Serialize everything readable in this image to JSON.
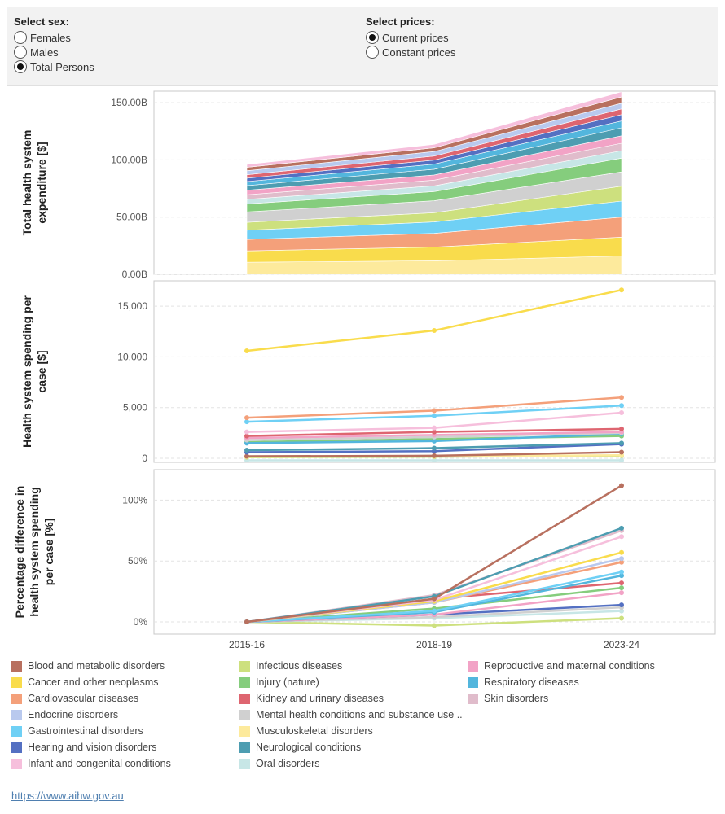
{
  "controls": {
    "sex": {
      "title": "Select sex:",
      "options": [
        "Females",
        "Males",
        "Total Persons"
      ],
      "selected": 2
    },
    "prices": {
      "title": "Select prices:",
      "options": [
        "Current prices",
        "Constant prices"
      ],
      "selected": 0
    }
  },
  "chart_data": [
    {
      "type": "area",
      "stacked": true,
      "ylabel": "Total health system expenditure [$]",
      "categories": [
        "2015-16",
        "2018-19",
        "2023-24"
      ],
      "ylim": [
        0,
        160000000000
      ],
      "yticks": [
        0,
        50000000000,
        100000000000,
        150000000000
      ],
      "ytick_labels": [
        "0.00B",
        "50.00B",
        "100.00B",
        "150.00B"
      ],
      "grid": true,
      "series": [
        {
          "name": "Musculoskeletal disorders",
          "values": [
            10.5,
            11.8,
            16.0
          ]
        },
        {
          "name": "Cancer and other neoplasms",
          "values": [
            10.0,
            12.0,
            16.5
          ]
        },
        {
          "name": "Cardiovascular diseases",
          "values": [
            10.0,
            12.0,
            17.5
          ]
        },
        {
          "name": "Gastrointestinal disorders",
          "values": [
            8.0,
            10.0,
            14.0
          ]
        },
        {
          "name": "Infectious diseases",
          "values": [
            7.0,
            8.0,
            13.0
          ]
        },
        {
          "name": "Mental health conditions and substance use disorders",
          "values": [
            9.0,
            10.5,
            12.5
          ]
        },
        {
          "name": "Injury (nature)",
          "values": [
            7.0,
            8.0,
            12.0
          ]
        },
        {
          "name": "Oral disorders",
          "values": [
            4.0,
            5.0,
            6.5
          ]
        },
        {
          "name": "Skin disorders",
          "values": [
            4.0,
            5.0,
            6.5
          ]
        },
        {
          "name": "Reproductive and maternal conditions",
          "values": [
            4.0,
            4.5,
            6.5
          ]
        },
        {
          "name": "Neurological conditions",
          "values": [
            4.0,
            5.0,
            7.0
          ]
        },
        {
          "name": "Respiratory diseases",
          "values": [
            3.5,
            4.5,
            6.0
          ]
        },
        {
          "name": "Hearing and vision disorders",
          "values": [
            3.0,
            3.5,
            5.5
          ]
        },
        {
          "name": "Kidney and urinary diseases",
          "values": [
            3.0,
            3.5,
            5.0
          ]
        },
        {
          "name": "Endocrine disorders",
          "values": [
            3.5,
            4.0,
            5.0
          ]
        },
        {
          "name": "Blood and metabolic disorders",
          "values": [
            3.0,
            3.2,
            5.5
          ]
        },
        {
          "name": "Infant and congenital conditions",
          "values": [
            2.5,
            3.0,
            4.5
          ]
        }
      ]
    },
    {
      "type": "line",
      "ylabel": "Health system spending per case [$]",
      "categories": [
        "2015-16",
        "2018-19",
        "2023-24"
      ],
      "ylim": [
        -400,
        17500
      ],
      "yticks": [
        0,
        5000,
        10000,
        15000
      ],
      "ytick_labels": [
        "0",
        "5,000",
        "10,000",
        "15,000"
      ],
      "grid": true,
      "series": [
        {
          "name": "Cancer and other neoplasms",
          "values": [
            10600,
            12600,
            16600
          ]
        },
        {
          "name": "Cardiovascular diseases",
          "values": [
            4000,
            4700,
            6000
          ]
        },
        {
          "name": "Gastrointestinal disorders",
          "values": [
            3600,
            4200,
            5200
          ]
        },
        {
          "name": "Infant and congenital conditions",
          "values": [
            2600,
            3000,
            4500
          ]
        },
        {
          "name": "Kidney and urinary diseases",
          "values": [
            2200,
            2600,
            2900
          ]
        },
        {
          "name": "Reproductive and maternal conditions",
          "values": [
            2000,
            2300,
            2600
          ]
        },
        {
          "name": "Mental health conditions and substance use disorders",
          "values": [
            1800,
            2100,
            2500
          ]
        },
        {
          "name": "Respiratory diseases",
          "values": [
            1500,
            1700,
            2400
          ]
        },
        {
          "name": "Injury (nature)",
          "values": [
            1600,
            1900,
            2200
          ]
        },
        {
          "name": "Neurological conditions",
          "values": [
            800,
            1000,
            1500
          ]
        },
        {
          "name": "Hearing and vision disorders",
          "values": [
            600,
            700,
            1400
          ]
        },
        {
          "name": "Blood and metabolic disorders",
          "values": [
            200,
            250,
            600
          ]
        },
        {
          "name": "Musculoskeletal disorders",
          "values": [
            150,
            200,
            300
          ]
        },
        {
          "name": "Infectious diseases",
          "values": [
            100,
            150,
            250
          ]
        },
        {
          "name": "Oral disorders",
          "values": [
            -200,
            -200,
            -200
          ]
        }
      ]
    },
    {
      "type": "line",
      "ylabel": "Percentage difference in health system spending per case [%]",
      "categories": [
        "2015-16",
        "2018-19",
        "2023-24"
      ],
      "ylim": [
        -10,
        125
      ],
      "yticks": [
        0,
        50,
        100
      ],
      "ytick_labels": [
        "0%",
        "50%",
        "100%"
      ],
      "grid": true,
      "series": [
        {
          "name": "Blood and metabolic disorders",
          "values": [
            0,
            19,
            112
          ]
        },
        {
          "name": "Neurological conditions",
          "values": [
            0,
            21,
            77
          ]
        },
        {
          "name": "Skin disorders",
          "values": [
            0,
            22,
            75
          ]
        },
        {
          "name": "Infant and congenital conditions",
          "values": [
            0,
            18,
            70
          ]
        },
        {
          "name": "Cancer and other neoplasms",
          "values": [
            0,
            17,
            57
          ]
        },
        {
          "name": "Endocrine disorders",
          "values": [
            0,
            16,
            52
          ]
        },
        {
          "name": "Cardiovascular diseases",
          "values": [
            0,
            16,
            49
          ]
        },
        {
          "name": "Gastrointestinal disorders",
          "values": [
            0,
            9,
            41
          ]
        },
        {
          "name": "Respiratory diseases",
          "values": [
            0,
            8,
            38
          ]
        },
        {
          "name": "Kidney and urinary diseases",
          "values": [
            0,
            19,
            32
          ]
        },
        {
          "name": "Injury (nature)",
          "values": [
            0,
            11,
            28
          ]
        },
        {
          "name": "Reproductive and maternal conditions",
          "values": [
            0,
            6,
            24
          ]
        },
        {
          "name": "Hearing and vision disorders",
          "values": [
            0,
            6,
            14
          ]
        },
        {
          "name": "Mental health conditions and substance use disorders",
          "values": [
            0,
            4,
            12
          ]
        },
        {
          "name": "Oral disorders",
          "values": [
            0,
            3,
            9
          ]
        },
        {
          "name": "Infectious diseases",
          "values": [
            0,
            -3,
            3
          ]
        }
      ]
    }
  ],
  "x_tick_labels": [
    "2015-16",
    "2018-19",
    "2023-24"
  ],
  "legend": [
    {
      "name": "Blood and metabolic disorders",
      "color": "#b8705f"
    },
    {
      "name": "Cancer and other neoplasms",
      "color": "#f9dc4c"
    },
    {
      "name": "Cardiovascular diseases",
      "color": "#f4a07a"
    },
    {
      "name": "Endocrine disorders",
      "color": "#b9c9ee"
    },
    {
      "name": "Gastrointestinal disorders",
      "color": "#6fd0f5"
    },
    {
      "name": "Hearing and vision disorders",
      "color": "#5470c2"
    },
    {
      "name": "Infant and congenital conditions",
      "color": "#f6bfdc"
    },
    {
      "name": "Infectious diseases",
      "color": "#cde07e"
    },
    {
      "name": "Injury (nature)",
      "color": "#85cd7d"
    },
    {
      "name": "Kidney and urinary diseases",
      "color": "#de6570"
    },
    {
      "name": "Mental health conditions and substance use ..",
      "color": "#d0d0d0"
    },
    {
      "name": "Musculoskeletal disorders",
      "color": "#fdea9c"
    },
    {
      "name": "Neurological conditions",
      "color": "#4d9db1"
    },
    {
      "name": "Oral disorders",
      "color": "#c7e6e6"
    },
    {
      "name": "Reproductive and maternal conditions",
      "color": "#f2a3c6"
    },
    {
      "name": "Respiratory diseases",
      "color": "#53b6dd"
    },
    {
      "name": "Skin disorders",
      "color": "#e0bccb"
    }
  ],
  "footer_link": "https://www.aihw.gov.au"
}
